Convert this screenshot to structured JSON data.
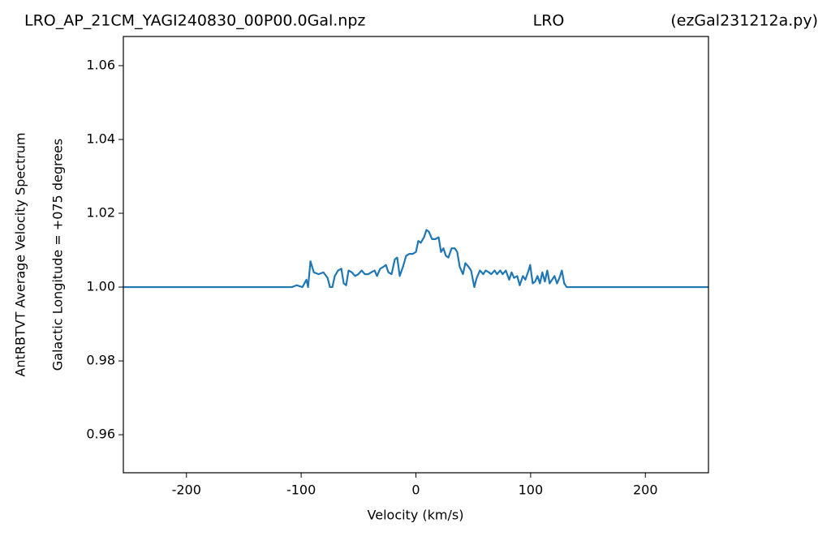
{
  "chart_data": {
    "type": "line",
    "title": [
      "LRO_AP_21CM_YAGI240830_00P00.0Gal.npz",
      "LRO",
      "(ezGal231212a.py)"
    ],
    "xlabel": "Velocity (km/s)",
    "ylabel": [
      "AntRBTVT Average Velocity Spectrum",
      "Galactic Longitude = +075 degrees"
    ],
    "xlim": [
      -255,
      255
    ],
    "ylim": [
      0.9497,
      1.0679
    ],
    "xticks": [
      -200,
      -100,
      0,
      100,
      200
    ],
    "yticks": [
      0.96,
      0.98,
      {
        "value": 1,
        "label": "1.00"
      },
      1.02,
      1.04,
      1.06
    ],
    "series": [
      {
        "color": "#1f77b4",
        "x": [
          -255,
          -108,
          -103.9,
          -98.9,
          -95.4,
          -94.0,
          -91.9,
          -89.0,
          -84.8,
          -80.6,
          -77.0,
          -74.9,
          -72.8,
          -70.7,
          -67.8,
          -65.0,
          -62.9,
          -60.8,
          -58.7,
          -55.8,
          -53.0,
          -50.2,
          -47.3,
          -44.5,
          -41.7,
          -38.9,
          -36.0,
          -33.9,
          -31.1,
          -28.3,
          -26.1,
          -24.0,
          -21.2,
          -18.4,
          -16.3,
          -14.1,
          -11.3,
          -8.5,
          -5.7,
          -2.8,
          0,
          2.1,
          4.2,
          7.1,
          9.2,
          11.3,
          14.1,
          17.0,
          19.8,
          21.9,
          24.0,
          26.1,
          28.3,
          31.1,
          33.9,
          36.0,
          38.2,
          41.0,
          43.1,
          45.9,
          48.1,
          50.9,
          53.0,
          55.8,
          58.7,
          60.8,
          63.6,
          65.7,
          68.6,
          70.7,
          73.5,
          75.6,
          78.4,
          81.3,
          83.4,
          85.5,
          88.3,
          90.5,
          93.3,
          95.4,
          98.2,
          99.6,
          101.8,
          103.9,
          106.0,
          108.1,
          110.2,
          112.4,
          114.5,
          116.6,
          118.7,
          120.8,
          123.0,
          125.1,
          127.2,
          129.3,
          131.4,
          255
        ],
        "values": [
          1.0,
          1.0,
          1.0005,
          1.0,
          1.002,
          1.0,
          1.007,
          1.004,
          1.0035,
          1.004,
          1.0025,
          1.0,
          1.0,
          1.003,
          1.0045,
          1.005,
          1.001,
          1.0005,
          1.0045,
          1.004,
          1.003,
          1.0035,
          1.0045,
          1.0035,
          1.0035,
          1.004,
          1.0045,
          1.003,
          1.005,
          1.0055,
          1.006,
          1.004,
          1.0035,
          1.0075,
          1.008,
          1.003,
          1.0055,
          1.0085,
          1.009,
          1.009,
          1.0095,
          1.0125,
          1.012,
          1.0135,
          1.0155,
          1.015,
          1.013,
          1.013,
          1.0135,
          1.0095,
          1.0105,
          1.0085,
          1.008,
          1.0105,
          1.0105,
          1.0095,
          1.0055,
          1.0035,
          1.0065,
          1.0055,
          1.0045,
          1.0,
          1.0025,
          1.0045,
          1.0035,
          1.0045,
          1.004,
          1.0035,
          1.0045,
          1.0035,
          1.0045,
          1.0035,
          1.0045,
          1.002,
          1.004,
          1.0025,
          1.003,
          1.0005,
          1.003,
          1.002,
          1.0045,
          1.006,
          1.001,
          1.0015,
          1.003,
          1.001,
          1.004,
          1.0015,
          1.0045,
          1.001,
          1.002,
          1.003,
          1.001,
          1.0025,
          1.0045,
          1.001,
          1.0,
          1.0
        ]
      }
    ]
  }
}
